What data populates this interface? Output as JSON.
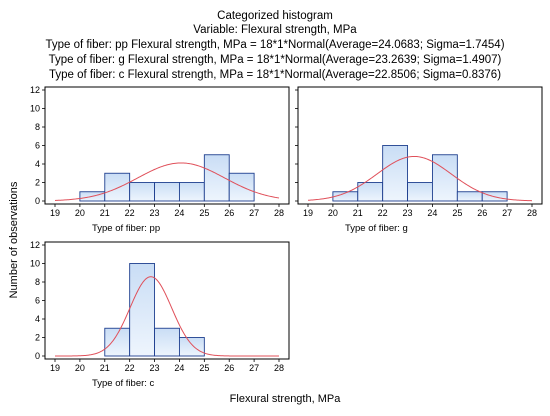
{
  "header": {
    "title": "Categorized histogram",
    "subtitle": "Variable: Flexural strength, MPa",
    "fit_lines": [
      "Type of fiber: pp  Flexural strength, MPa = 18*1*Normal(Average=24.0683; Sigma=1.7454)",
      "Type of fiber: g  Flexural strength, MPa = 18*1*Normal(Average=23.2639; Sigma=1.4907)",
      "Type of fiber: c  Flexural strength, MPa = 18*1*Normal(Average=22.8506; Sigma=0.8376)"
    ]
  },
  "chart_data": {
    "type": "bar",
    "xlabel": "Flexural strength, MPa",
    "ylabel": "Number of observations",
    "xlim": [
      19,
      28
    ],
    "ylim": [
      0,
      12
    ],
    "x_ticks": [
      19,
      20,
      21,
      22,
      23,
      24,
      25,
      26,
      27,
      28
    ],
    "y_ticks": [
      0,
      2,
      4,
      6,
      8,
      10,
      12
    ],
    "bin_width": 1,
    "grid": false,
    "colors": {
      "bar_fill_top": "#c9ddf5",
      "bar_fill_bottom": "#eef5fd",
      "bar_stroke": "#1e3f8f",
      "curve": "#e0505a",
      "axis": "#000000"
    },
    "panels": [
      {
        "label": "Type of fiber: pp",
        "bins": [
          {
            "start": 20,
            "end": 21,
            "count": 1
          },
          {
            "start": 21,
            "end": 22,
            "count": 3
          },
          {
            "start": 22,
            "end": 23,
            "count": 2
          },
          {
            "start": 23,
            "end": 24,
            "count": 2
          },
          {
            "start": 24,
            "end": 25,
            "count": 2
          },
          {
            "start": 25,
            "end": 26,
            "count": 5
          },
          {
            "start": 26,
            "end": 27,
            "count": 3
          }
        ],
        "normal_fit": {
          "n": 18,
          "bin_width": 1,
          "mean": 24.0683,
          "sigma": 1.7454
        }
      },
      {
        "label": "Type of fiber: g",
        "bins": [
          {
            "start": 20,
            "end": 21,
            "count": 1
          },
          {
            "start": 21,
            "end": 22,
            "count": 2
          },
          {
            "start": 22,
            "end": 23,
            "count": 6
          },
          {
            "start": 23,
            "end": 24,
            "count": 2
          },
          {
            "start": 24,
            "end": 25,
            "count": 5
          },
          {
            "start": 25,
            "end": 26,
            "count": 1
          },
          {
            "start": 26,
            "end": 27,
            "count": 1
          }
        ],
        "normal_fit": {
          "n": 18,
          "bin_width": 1,
          "mean": 23.2639,
          "sigma": 1.4907
        }
      },
      {
        "label": "Type of fiber: c",
        "bins": [
          {
            "start": 21,
            "end": 22,
            "count": 3
          },
          {
            "start": 22,
            "end": 23,
            "count": 10
          },
          {
            "start": 23,
            "end": 24,
            "count": 3
          },
          {
            "start": 24,
            "end": 25,
            "count": 2
          }
        ],
        "normal_fit": {
          "n": 18,
          "bin_width": 1,
          "mean": 22.8506,
          "sigma": 0.8376
        }
      }
    ]
  }
}
